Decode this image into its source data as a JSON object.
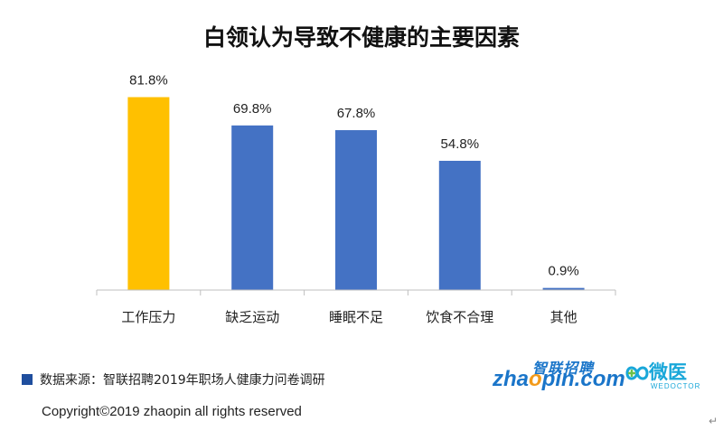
{
  "chart_data": {
    "type": "bar",
    "title": "白领认为导致不健康的主要因素",
    "categories": [
      "工作压力",
      "缺乏运动",
      "睡眠不足",
      "饮食不合理",
      "其他"
    ],
    "values": [
      81.8,
      69.8,
      67.8,
      54.8,
      0.9
    ],
    "value_labels": [
      "81.8%",
      "69.8%",
      "67.8%",
      "54.8%",
      "0.9%"
    ],
    "bar_colors": [
      "#FFC000",
      "#4472C4",
      "#4472C4",
      "#4472C4",
      "#4472C4"
    ],
    "ylim": [
      0,
      100
    ],
    "grid": false,
    "legend": "none"
  },
  "footer": {
    "source": "数据来源：智联招聘2019年职场人健康力问卷调研",
    "copyright": "Copyright©2019 zhaopin all rights reserved"
  },
  "logos": {
    "zhaopin_cn": "智联招聘",
    "zhaopin_en_pre": "zha",
    "zhaopin_en_o": "o",
    "zhaopin_en_post": "pin.com",
    "weiyi_cn": "微医",
    "weiyi_en": "WEDOCTOR"
  },
  "colors": {
    "accent_bar": "#FFC000",
    "bar": "#4472C4",
    "source_square": "#1F4E9E"
  }
}
